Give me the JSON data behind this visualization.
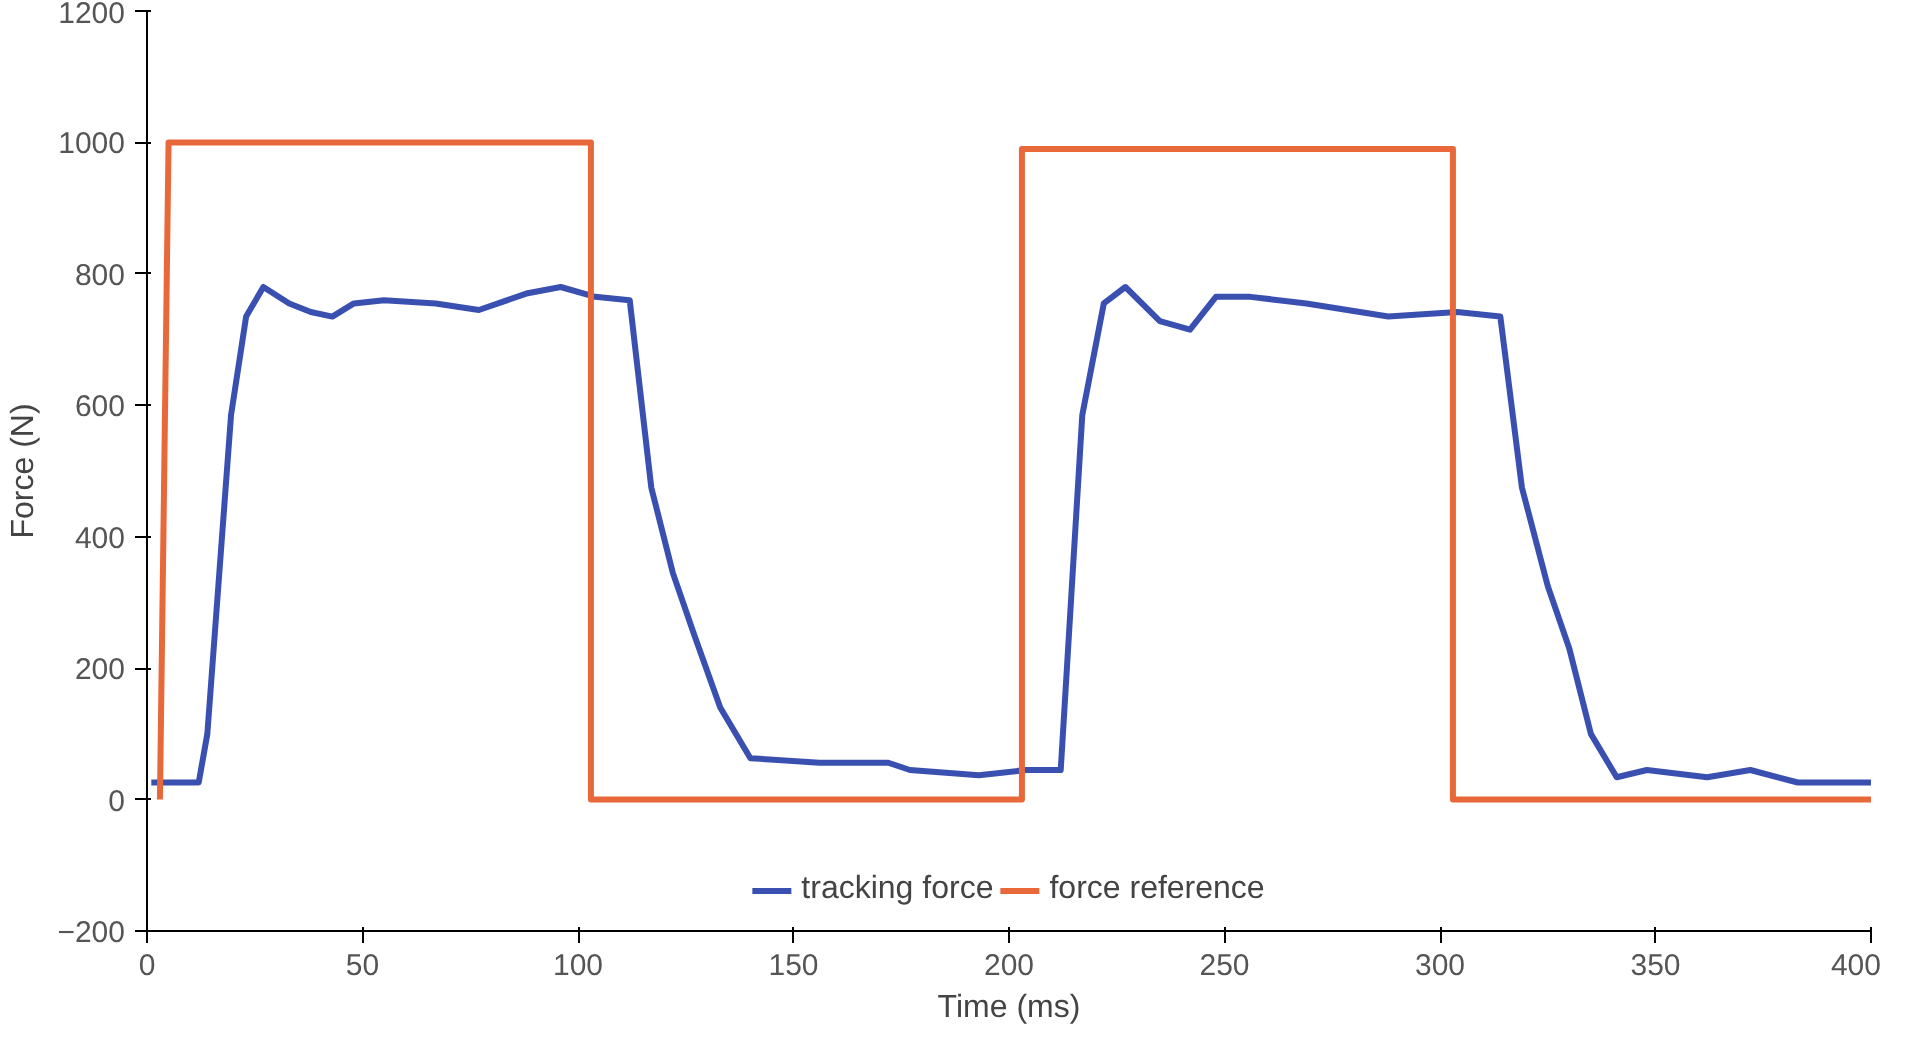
{
  "chart_data": {
    "type": "line",
    "xlabel": "Time (ms)",
    "ylabel": "Force (N)",
    "xlim": [
      0,
      400
    ],
    "ylim": [
      -200,
      1200
    ],
    "xticks": [
      0,
      50,
      100,
      150,
      200,
      250,
      300,
      350,
      400
    ],
    "yticks": [
      -200,
      0,
      200,
      400,
      600,
      800,
      1000,
      1200
    ],
    "grid": false,
    "legend": "bottom",
    "line_style": "solid",
    "series": [
      {
        "name": "tracking force",
        "color": "#3a50b0",
        "x": [
          1,
          12,
          14,
          19.5,
          23,
          27,
          33,
          38,
          43,
          48,
          55,
          67,
          77,
          88,
          96,
          104,
          112,
          117,
          122,
          127,
          133,
          140,
          156,
          172,
          177,
          193,
          204,
          212,
          217,
          222,
          227,
          235,
          242,
          248,
          256,
          269,
          288,
          304,
          314,
          319,
          325,
          330,
          335,
          341,
          348,
          362,
          372,
          383,
          400
        ],
        "values": [
          26,
          26,
          100,
          585,
          735,
          780,
          755,
          742,
          735,
          755,
          760,
          755,
          745,
          770,
          780,
          765,
          760,
          475,
          345,
          250,
          140,
          63,
          56,
          56,
          45,
          37,
          45,
          45,
          585,
          755,
          780,
          728,
          715,
          765,
          765,
          755,
          735,
          742,
          735,
          475,
          325,
          230,
          100,
          34,
          45,
          34,
          45,
          26,
          26
        ]
      },
      {
        "name": "force reference",
        "color": "#e8683a",
        "x": [
          3,
          5,
          103,
          103,
          203,
          203,
          303,
          303,
          400
        ],
        "values": [
          0,
          1000,
          1000,
          0,
          0,
          990,
          990,
          0,
          0
        ]
      }
    ]
  }
}
